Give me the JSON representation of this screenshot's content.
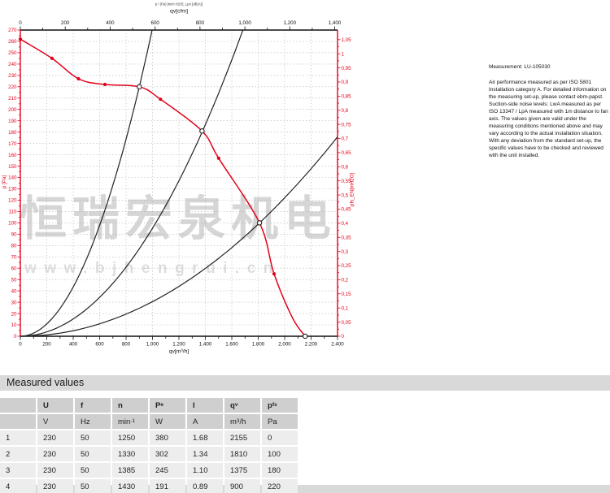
{
  "watermark": {
    "text_cn": "恒瑞宏泉机电",
    "text_url": "www.bjhengrui.cn"
  },
  "measurement_panel": {
    "title": "Measurement: LU-105030",
    "body": "Air performance measured as per ISO 5801 Installation category A. For detailed information on the measuring set-up, please contact ebm-papst. Suction-side noise levels: LwA measured as per ISO 13347 / LpA measured with 1m distance to fan axis. The values given are valid under the measuring conditions mentioned above and may vary according to the actual installation situation. With any deviation from the standard set-up, the specific values have to be checked and reviewed with the unit installed."
  },
  "measured_values": {
    "title": "Measured values",
    "columns": [
      "U",
      "f",
      "n",
      "P_e",
      "I",
      "q_v",
      "p_fs"
    ],
    "units": [
      "V",
      "Hz",
      "min^-1",
      "W",
      "A",
      "m^3/h",
      "Pa"
    ],
    "rows": [
      [
        "1",
        "230",
        "50",
        "1250",
        "380",
        "1.68",
        "2155",
        "0"
      ],
      [
        "2",
        "230",
        "50",
        "1330",
        "302",
        "1.34",
        "1810",
        "100"
      ],
      [
        "3",
        "230",
        "50",
        "1385",
        "245",
        "1.10",
        "1375",
        "180"
      ],
      [
        "4",
        "230",
        "50",
        "1430",
        "191",
        "0.89",
        "900",
        "220"
      ]
    ]
  },
  "chart_data": {
    "type": "line",
    "title_small": "p / (Pa) [inch H2O], LpA [dB(A)]",
    "axes": {
      "top": {
        "label": "qv[cfm]",
        "min": 0,
        "max": 1400,
        "tick_step": 200,
        "minor_step": 100,
        "m3h_per_cfm": 1.699,
        "tick_labels": [
          "0",
          "200",
          "400",
          "600",
          "800",
          "1,000",
          "1,200",
          "1,400"
        ]
      },
      "bottom": {
        "label": "qv[m³/h]",
        "min": 0,
        "max": 2400,
        "tick_step": 200,
        "minor_step": 100,
        "tick_labels": [
          "0",
          "200",
          "400",
          "600",
          "800",
          "1.000",
          "1.200",
          "1.400",
          "1.600",
          "1.800",
          "2.000",
          "2.200",
          "2.400"
        ]
      },
      "left": {
        "label": "p [Pa]",
        "min": 0,
        "max": 270,
        "tick_step": 10,
        "minor_step": 5
      },
      "right": {
        "label": "pfs_EN[inH2O]",
        "min": 0,
        "max": 1.05,
        "tick_step": 0.05,
        "minor_step": 0.025,
        "pa_per_unit": 249.09,
        "tick_labels": [
          "0",
          "0,05",
          "0,1",
          "0,15",
          "0,2",
          "0,25",
          "0,3",
          "0,35",
          "0,4",
          "0,45",
          "0,5",
          "0,55",
          "0,6",
          "0,65",
          "0,7",
          "0,75",
          "0,8",
          "0,85",
          "0,9",
          "0,95",
          "1",
          "1,05"
        ]
      }
    },
    "fan_curve": {
      "points": [
        [
          0,
          262
        ],
        [
          240,
          245
        ],
        [
          440,
          227
        ],
        [
          640,
          222
        ],
        [
          900,
          220
        ],
        [
          1060,
          209
        ],
        [
          1375,
          181
        ],
        [
          1500,
          157
        ],
        [
          1810,
          100
        ],
        [
          1920,
          55
        ],
        [
          2060,
          16
        ],
        [
          2155,
          0
        ]
      ],
      "dot_markers": [
        [
          0,
          262
        ],
        [
          240,
          245
        ],
        [
          440,
          227
        ],
        [
          640,
          222
        ],
        [
          1060,
          209
        ],
        [
          1500,
          157
        ],
        [
          1920,
          55
        ]
      ]
    },
    "working_points": [
      [
        900,
        220
      ],
      [
        1375,
        181
      ],
      [
        1810,
        100
      ],
      [
        2155,
        0
      ]
    ],
    "system_curves": {
      "through_points": [
        [
          900,
          220
        ],
        [
          1375,
          180
        ],
        [
          1810,
          100
        ]
      ]
    },
    "ylim": [
      0,
      270
    ],
    "xlim": [
      0,
      2400
    ],
    "grid": "dashed, every 200 m³/h vertical, every 10 Pa horizontal"
  },
  "colors": {
    "accent_red": "#e2001a",
    "curve_black": "#222222",
    "grid": "#ababab",
    "frame_black": "#111111",
    "table_header_bg": "#cfcfcf",
    "table_row_bg": "#ededed",
    "bar_bg": "#d9d9d9",
    "watermark": "#d6d6d6"
  }
}
